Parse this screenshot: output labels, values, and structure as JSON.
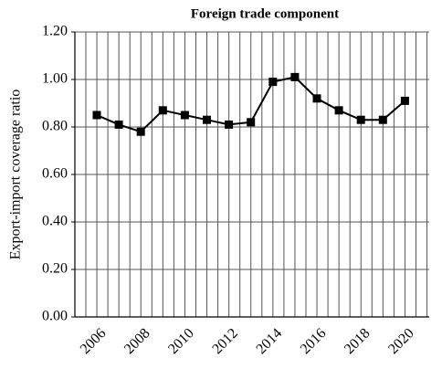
{
  "chart_data": {
    "type": "line",
    "title": "Foreign trade component",
    "ylabel": "Export-import coverage ratio",
    "categories": [
      "2006",
      null,
      "2008",
      null,
      "2010",
      null,
      "2012",
      null,
      "2014",
      null,
      "2016",
      null,
      "2018",
      null,
      "2020"
    ],
    "series": [
      {
        "name": "Export-import coverage ratio",
        "color": "#000000",
        "values": [
          0.85,
          0.81,
          0.78,
          0.87,
          0.85,
          0.83,
          0.81,
          0.82,
          0.99,
          1.01,
          0.92,
          0.87,
          0.83,
          0.83,
          0.91
        ]
      }
    ],
    "ylim": [
      0,
      1.2
    ],
    "yticks": [
      {
        "value": 0,
        "label": "0.00"
      },
      {
        "value": 0.2,
        "label": "0.20"
      },
      {
        "value": 0.4,
        "label": "0.40"
      },
      {
        "value": 0.6,
        "label": "0.60"
      },
      {
        "value": 0.8,
        "label": "0.80"
      },
      {
        "value": 1.0,
        "label": "1.00"
      },
      {
        "value": 1.2,
        "label": "1.20"
      }
    ],
    "grid": true
  }
}
